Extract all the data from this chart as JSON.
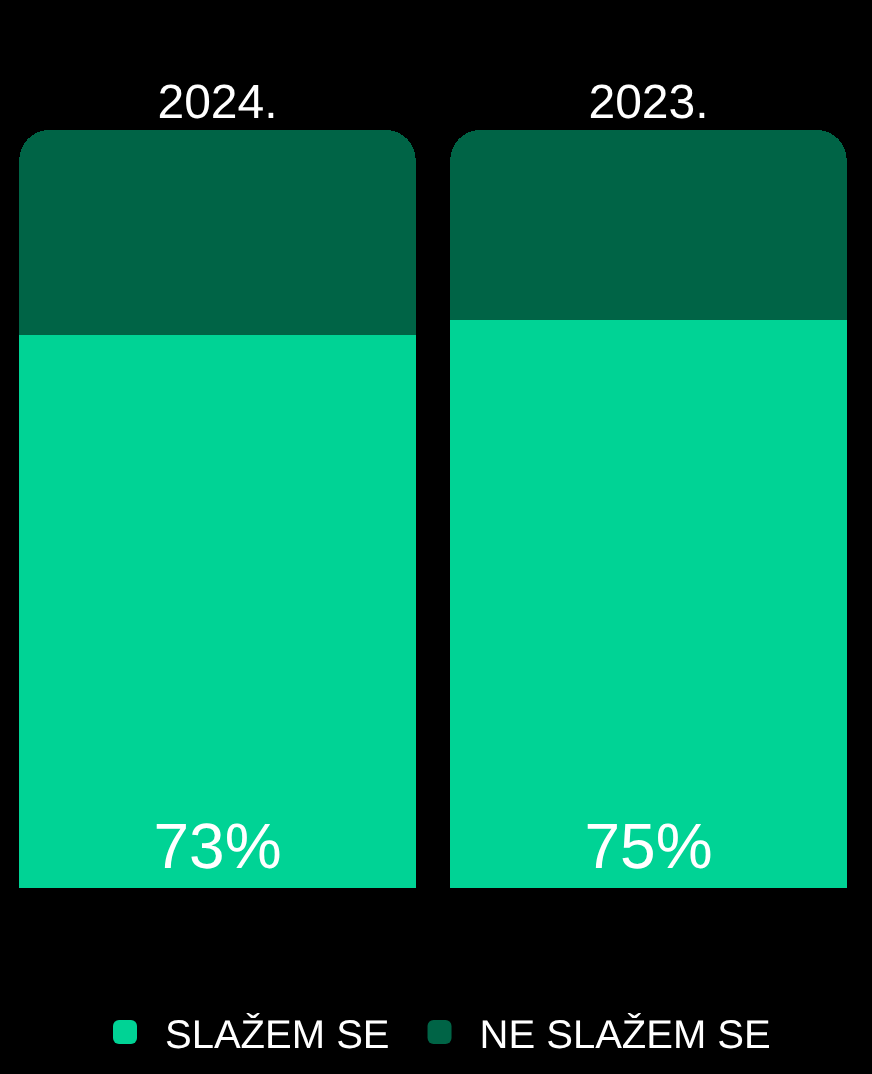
{
  "chart_data": {
    "type": "bar",
    "stacked": true,
    "categories": [
      "2024.",
      "2023."
    ],
    "series": [
      {
        "name": "SLAŽEM SE",
        "color": "#00d395",
        "values": [
          73,
          75
        ],
        "value_labels": [
          "73%",
          "75%"
        ]
      },
      {
        "name": "NE SLAŽEM SE",
        "color": "#006446",
        "values": [
          27,
          25
        ]
      }
    ],
    "ylim": [
      0,
      100
    ],
    "tick_labels": "x",
    "legend": "bottom",
    "grid": false
  }
}
